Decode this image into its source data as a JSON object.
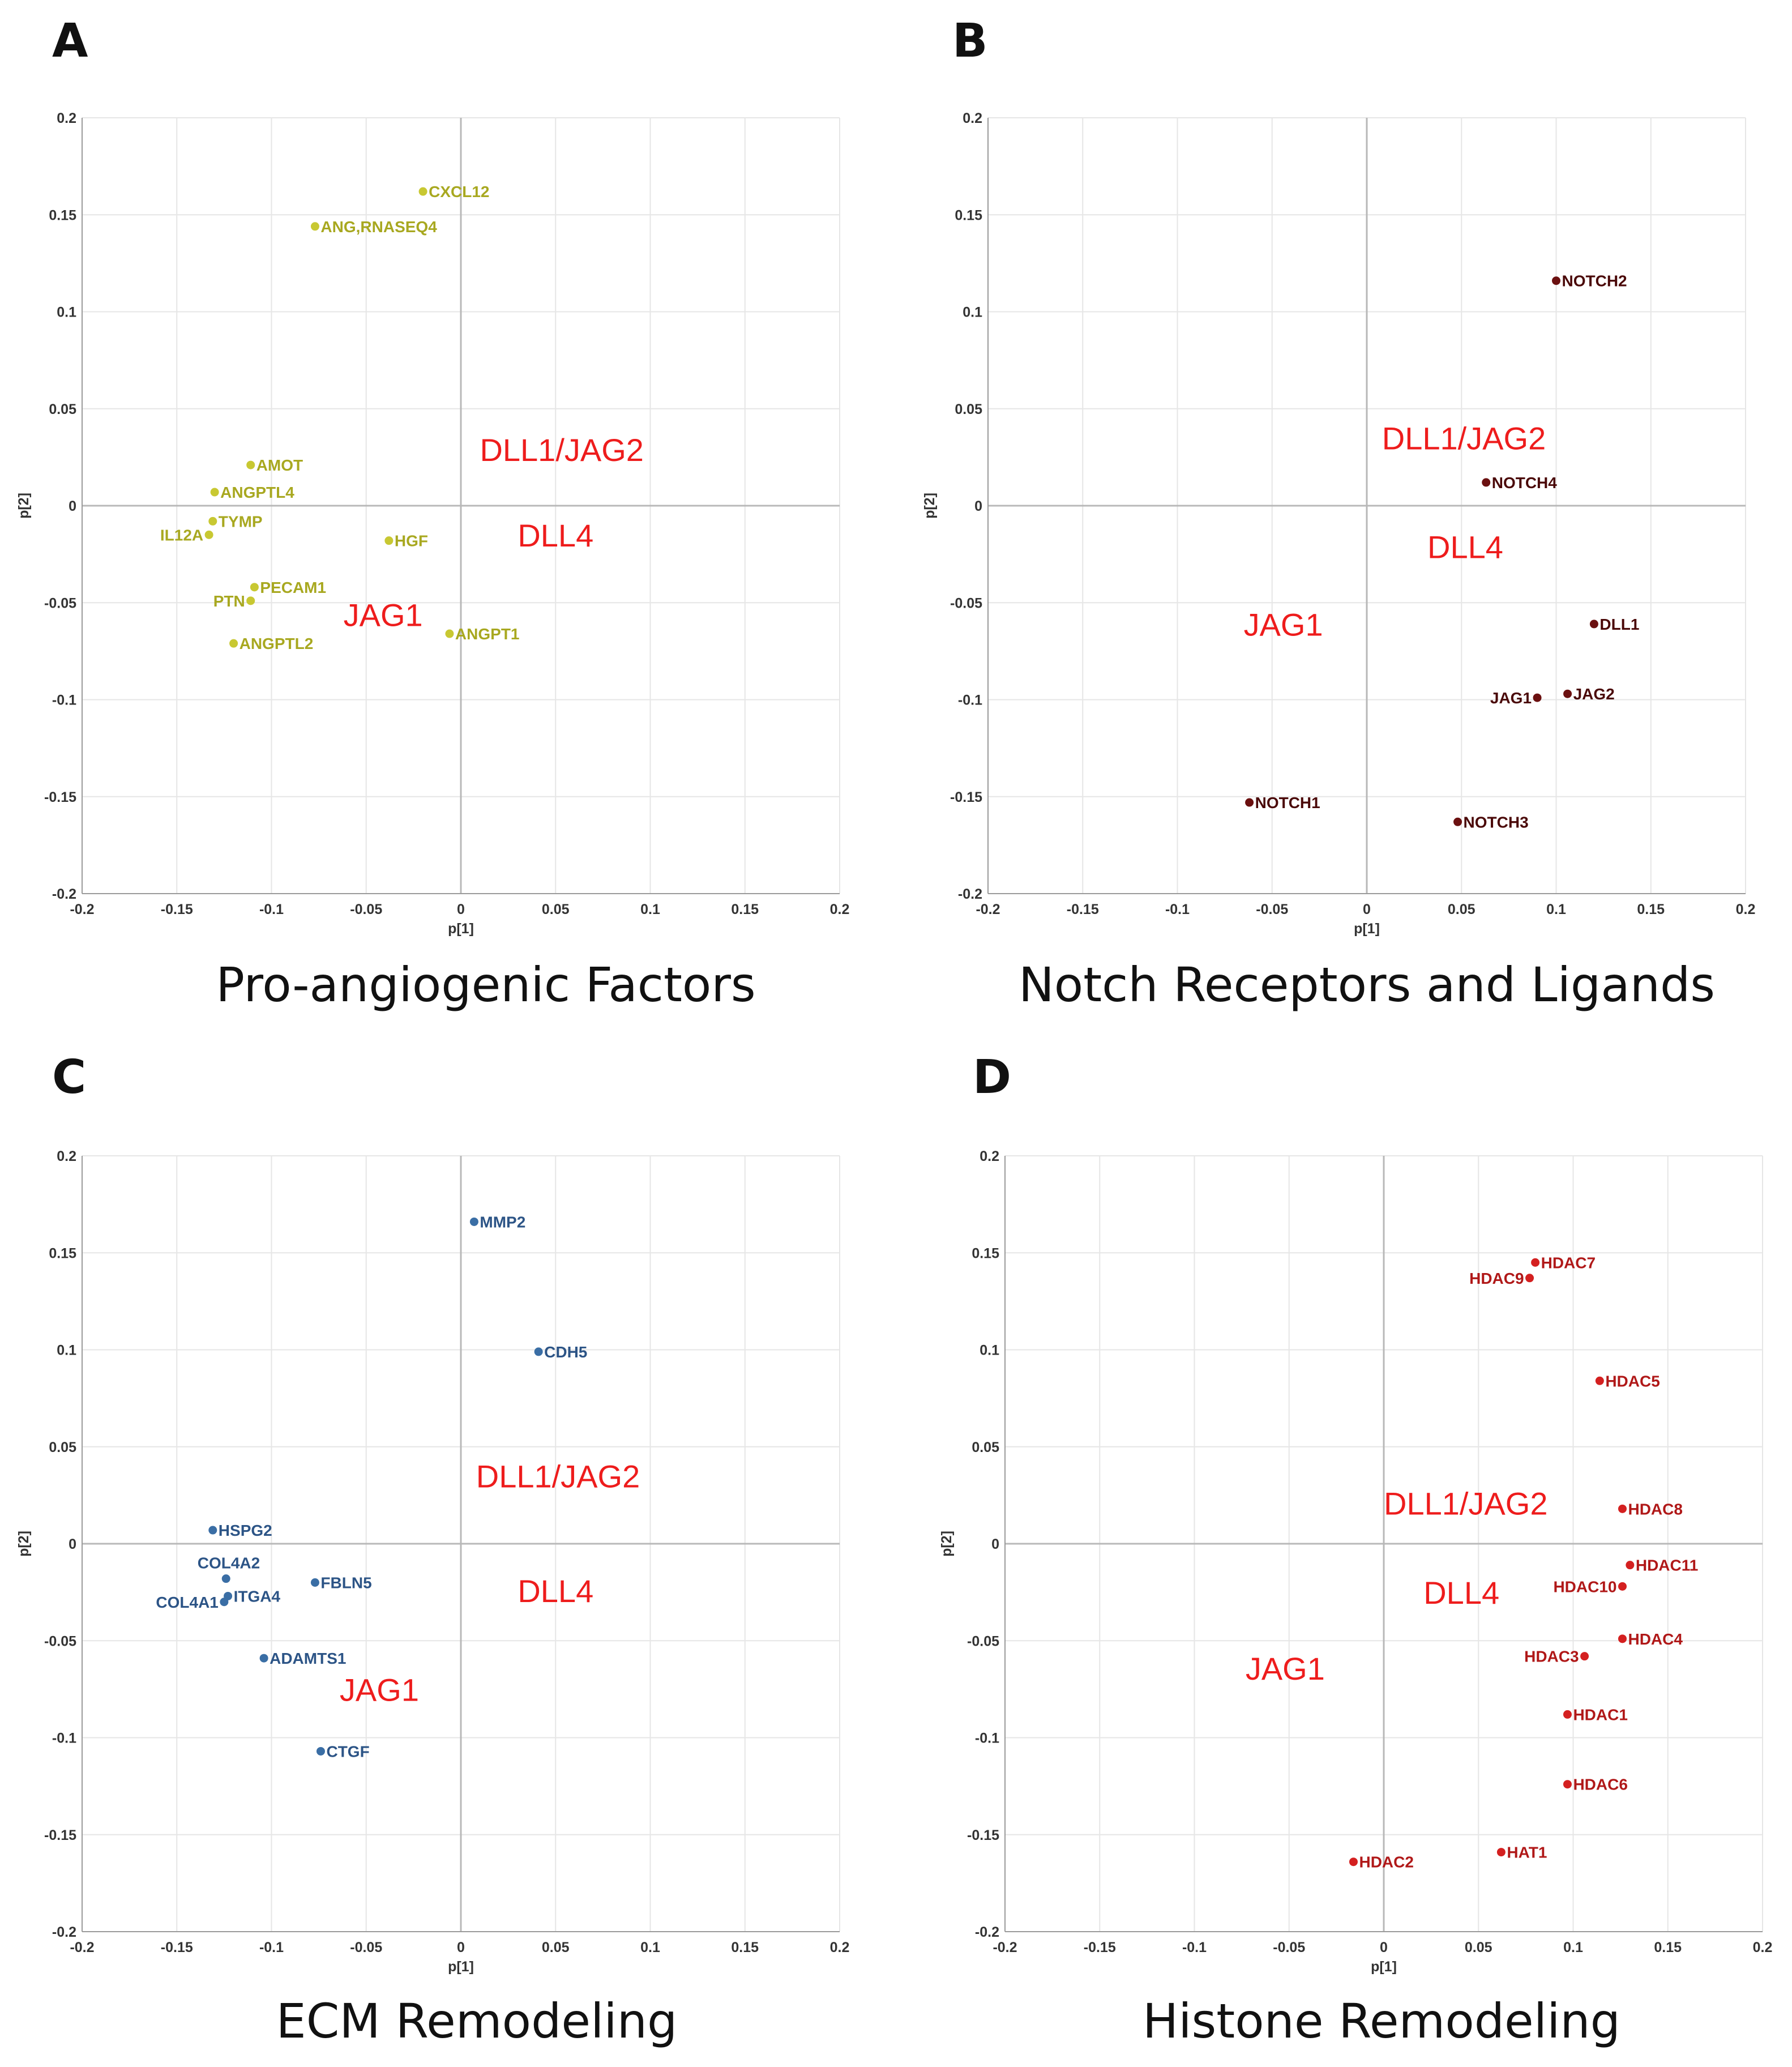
{
  "chart_data": [
    {
      "type": "scatter",
      "panel": "A",
      "title": "Pro-angiogenic Factors",
      "xlabel": "p[1]",
      "ylabel": "p[2]",
      "xlim": [
        -0.2,
        0.2
      ],
      "ylim": [
        -0.2,
        0.2
      ],
      "xticks": [
        "-0.2",
        "-0.15",
        "-0.1",
        "-0.05",
        "0",
        "0.05",
        "0.1",
        "0.15",
        "0.2"
      ],
      "yticks": [
        "0.2",
        "0.15",
        "0.1",
        "0.05",
        "0",
        "-0.05",
        "-0.1",
        "-0.15",
        "-0.2"
      ],
      "grid": true,
      "point_color": "#c8c832",
      "label_color": "#a8a820",
      "points": [
        {
          "label": "CXCL12",
          "x": -0.02,
          "y": 0.162,
          "side": "right"
        },
        {
          "label": "ANG,RNASEQ4",
          "x": -0.077,
          "y": 0.144,
          "side": "right"
        },
        {
          "label": "AMOT",
          "x": -0.111,
          "y": 0.021,
          "side": "right"
        },
        {
          "label": "ANGPTL4",
          "x": -0.13,
          "y": 0.007,
          "side": "right"
        },
        {
          "label": "TYMP",
          "x": -0.131,
          "y": -0.008,
          "side": "right"
        },
        {
          "label": "IL12A",
          "x": -0.133,
          "y": -0.015,
          "side": "left"
        },
        {
          "label": "HGF",
          "x": -0.038,
          "y": -0.018,
          "side": "right"
        },
        {
          "label": "PECAM1",
          "x": -0.109,
          "y": -0.042,
          "side": "right"
        },
        {
          "label": "PTN",
          "x": -0.111,
          "y": -0.049,
          "side": "left"
        },
        {
          "label": "ANGPT1",
          "x": -0.006,
          "y": -0.066,
          "side": "right"
        },
        {
          "label": "ANGPTL2",
          "x": -0.12,
          "y": -0.071,
          "side": "right"
        }
      ],
      "group_labels": [
        {
          "text": "DLL1/JAG2",
          "x": 0.01,
          "y": 0.023
        },
        {
          "text": "DLL4",
          "x": 0.03,
          "y": -0.021
        },
        {
          "text": "JAG1",
          "x": -0.062,
          "y": -0.062
        }
      ],
      "group_label_color": "#ee1c1c"
    },
    {
      "type": "scatter",
      "panel": "B",
      "title": "Notch Receptors and Ligands",
      "xlabel": "p[1]",
      "ylabel": "p[2]",
      "xlim": [
        -0.2,
        0.2
      ],
      "ylim": [
        -0.2,
        0.2
      ],
      "xticks": [
        "-0.2",
        "-0.15",
        "-0.1",
        "-0.05",
        "0",
        "0.05",
        "0.1",
        "0.15",
        "0.2"
      ],
      "yticks": [
        "0.2",
        "0.15",
        "0.1",
        "0.05",
        "0",
        "-0.05",
        "-0.1",
        "-0.15",
        "-0.2"
      ],
      "grid": true,
      "point_color": "#6b1010",
      "label_color": "#4a0808",
      "points": [
        {
          "label": "NOTCH2",
          "x": 0.1,
          "y": 0.116,
          "side": "right"
        },
        {
          "label": "NOTCH4",
          "x": 0.063,
          "y": 0.012,
          "side": "right"
        },
        {
          "label": "DLL1",
          "x": 0.12,
          "y": -0.061,
          "side": "right"
        },
        {
          "label": "JAG2",
          "x": 0.106,
          "y": -0.097,
          "side": "right"
        },
        {
          "label": "JAG1",
          "x": 0.09,
          "y": -0.099,
          "side": "left"
        },
        {
          "label": "NOTCH1",
          "x": -0.062,
          "y": -0.153,
          "side": "right"
        },
        {
          "label": "NOTCH3",
          "x": 0.048,
          "y": -0.163,
          "side": "right"
        }
      ],
      "group_labels": [
        {
          "text": "DLL1/JAG2",
          "x": 0.008,
          "y": 0.029
        },
        {
          "text": "DLL4",
          "x": 0.032,
          "y": -0.027
        },
        {
          "text": "JAG1",
          "x": -0.065,
          "y": -0.067
        }
      ],
      "group_label_color": "#ee1c1c"
    },
    {
      "type": "scatter",
      "panel": "C",
      "title": "ECM Remodeling",
      "xlabel": "p[1]",
      "ylabel": "p[2]",
      "xlim": [
        -0.2,
        0.2
      ],
      "ylim": [
        -0.2,
        0.2
      ],
      "xticks": [
        "-0.2",
        "-0.15",
        "-0.1",
        "-0.05",
        "0",
        "0.05",
        "0.1",
        "0.15",
        "0.2"
      ],
      "yticks": [
        "0.2",
        "0.15",
        "0.1",
        "0.05",
        "0",
        "-0.05",
        "-0.1",
        "-0.15",
        "-0.2"
      ],
      "grid": true,
      "point_color": "#3a6ea5",
      "label_color": "#2c5486",
      "points": [
        {
          "label": "MMP2",
          "x": 0.007,
          "y": 0.166,
          "side": "right"
        },
        {
          "label": "CDH5",
          "x": 0.041,
          "y": 0.099,
          "side": "right"
        },
        {
          "label": "HSPG2",
          "x": -0.131,
          "y": 0.007,
          "side": "right"
        },
        {
          "label": "COL4A2",
          "x": -0.124,
          "y": -0.018,
          "side": "above-left"
        },
        {
          "label": "FBLN5",
          "x": -0.077,
          "y": -0.02,
          "side": "right"
        },
        {
          "label": "ITGA4",
          "x": -0.123,
          "y": -0.027,
          "side": "right"
        },
        {
          "label": "COL4A1",
          "x": -0.125,
          "y": -0.03,
          "side": "left"
        },
        {
          "label": "ADAMTS1",
          "x": -0.104,
          "y": -0.059,
          "side": "right"
        },
        {
          "label": "CTGF",
          "x": -0.074,
          "y": -0.107,
          "side": "right"
        }
      ],
      "group_labels": [
        {
          "text": "DLL1/JAG2",
          "x": 0.008,
          "y": 0.029
        },
        {
          "text": "DLL4",
          "x": 0.03,
          "y": -0.03
        },
        {
          "text": "JAG1",
          "x": -0.064,
          "y": -0.081
        }
      ],
      "group_label_color": "#ee1c1c"
    },
    {
      "type": "scatter",
      "panel": "D",
      "title": "Histone Remodeling",
      "xlabel": "p[1]",
      "ylabel": "p[2]",
      "xlim": [
        -0.2,
        0.2
      ],
      "ylim": [
        -0.2,
        0.2
      ],
      "xticks": [
        "-0.2",
        "-0.15",
        "-0.1",
        "-0.05",
        "0",
        "0.05",
        "0.1",
        "0.15",
        "0.2"
      ],
      "yticks": [
        "0.2",
        "0.15",
        "0.1",
        "0.05",
        "0",
        "-0.05",
        "-0.1",
        "-0.15",
        "-0.2"
      ],
      "grid": true,
      "point_color": "#d42020",
      "label_color": "#b01818",
      "points": [
        {
          "label": "HDAC7",
          "x": 0.08,
          "y": 0.145,
          "side": "right"
        },
        {
          "label": "HDAC9",
          "x": 0.077,
          "y": 0.137,
          "side": "left"
        },
        {
          "label": "HDAC5",
          "x": 0.114,
          "y": 0.084,
          "side": "right"
        },
        {
          "label": "HDAC8",
          "x": 0.126,
          "y": 0.018,
          "side": "right"
        },
        {
          "label": "HDAC11",
          "x": 0.13,
          "y": -0.011,
          "side": "right"
        },
        {
          "label": "HDAC10",
          "x": 0.126,
          "y": -0.022,
          "side": "left"
        },
        {
          "label": "HDAC4",
          "x": 0.126,
          "y": -0.049,
          "side": "right"
        },
        {
          "label": "HDAC3",
          "x": 0.106,
          "y": -0.058,
          "side": "left"
        },
        {
          "label": "HDAC1",
          "x": 0.097,
          "y": -0.088,
          "side": "right"
        },
        {
          "label": "HDAC6",
          "x": 0.097,
          "y": -0.124,
          "side": "right"
        },
        {
          "label": "HAT1",
          "x": 0.062,
          "y": -0.159,
          "side": "right"
        },
        {
          "label": "HDAC2",
          "x": -0.016,
          "y": -0.164,
          "side": "right"
        }
      ],
      "group_labels": [
        {
          "text": "DLL1/JAG2",
          "x": 0.0,
          "y": 0.015
        },
        {
          "text": "DLL4",
          "x": 0.021,
          "y": -0.031
        },
        {
          "text": "JAG1",
          "x": -0.073,
          "y": -0.07
        }
      ],
      "group_label_color": "#ee1c1c"
    }
  ]
}
